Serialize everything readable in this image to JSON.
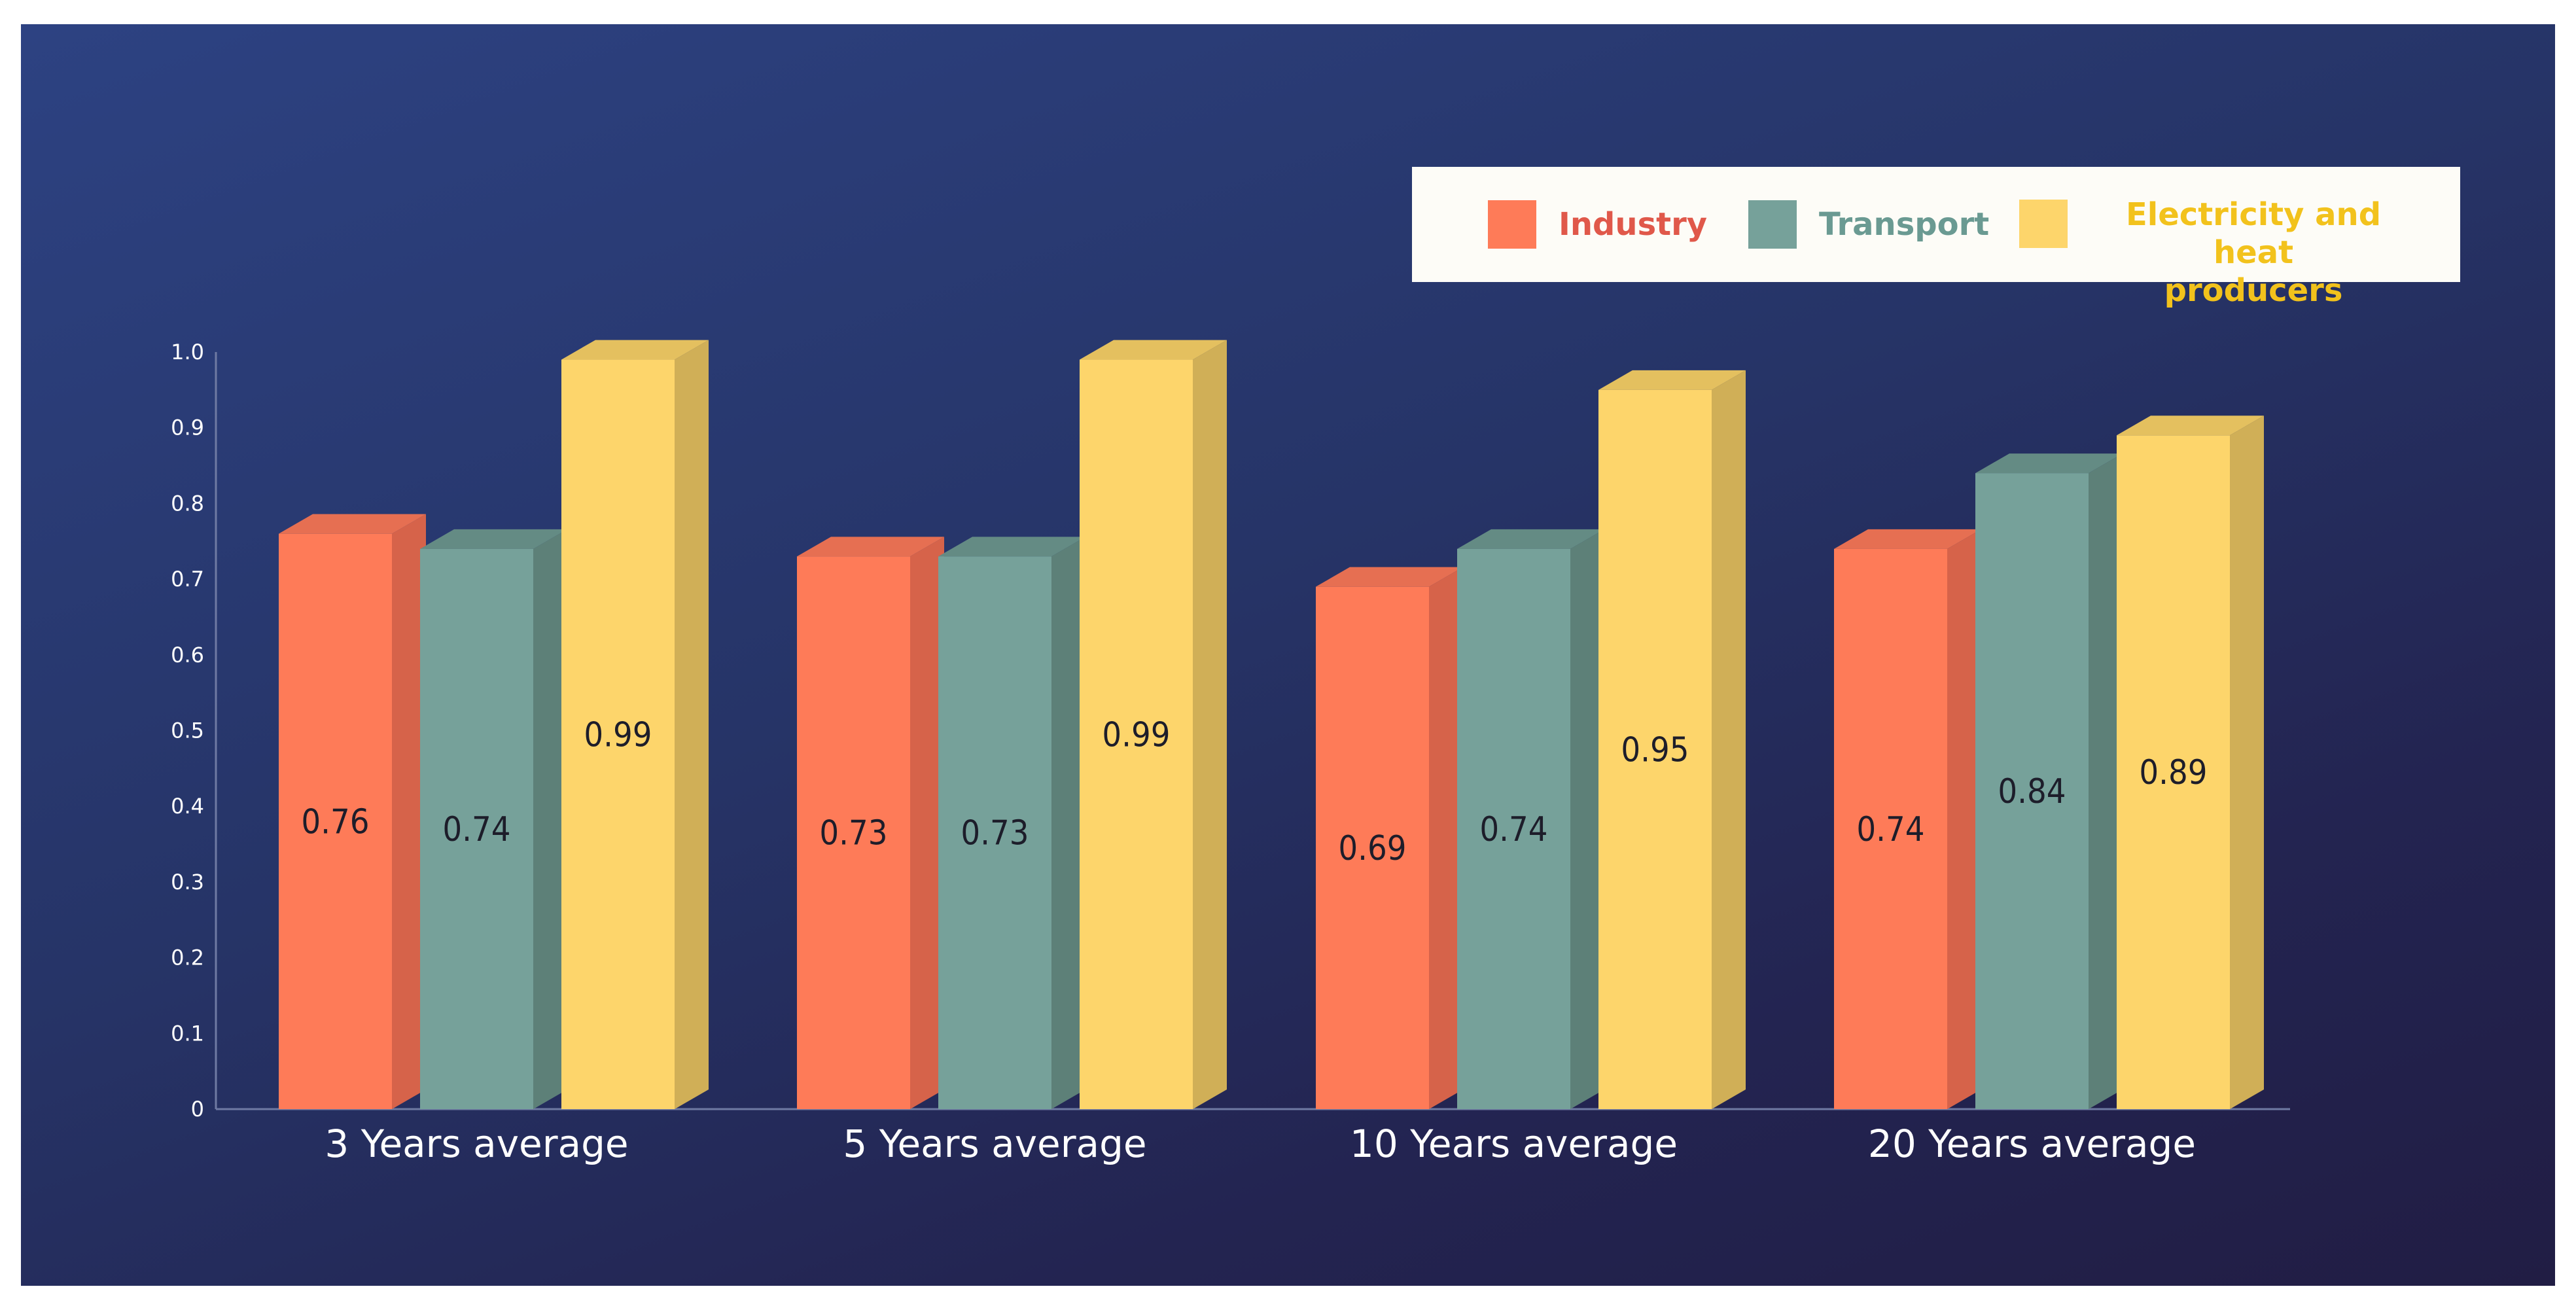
{
  "chart_data": {
    "type": "bar",
    "title": "",
    "xlabel": "",
    "ylabel": "",
    "ylim": [
      0,
      1.0
    ],
    "yticks": [
      "0",
      "0.1",
      "0.2",
      "0.3",
      "0.4",
      "0.5",
      "0.6",
      "0.7",
      "0.8",
      "0.9",
      "1.0"
    ],
    "categories": [
      "3 Years average",
      "5 Years average",
      "10 Years average",
      "20 Years average"
    ],
    "series": [
      {
        "name": "Industry",
        "values": [
          0.76,
          0.73,
          0.69,
          0.74
        ],
        "labels": [
          "0.76",
          "0.73",
          "0.69",
          "0.74"
        ],
        "color": "#fe7b58",
        "side_color": "#d6634a",
        "top_color": "#e66f52",
        "label_color": "#e0584a"
      },
      {
        "name": "Transport",
        "values": [
          0.74,
          0.73,
          0.74,
          0.84
        ],
        "labels": [
          "0.74",
          "0.73",
          "0.74",
          "0.84"
        ],
        "color": "#76a19a",
        "side_color": "#5d8078",
        "top_color": "#648b84",
        "label_color": "#6a9a92"
      },
      {
        "name": "Electricity and heat producers",
        "values": [
          0.99,
          0.99,
          0.95,
          0.89
        ],
        "labels": [
          "0.99",
          "0.99",
          "0.95",
          "0.89"
        ],
        "color": "#fdd56b",
        "side_color": "#d0af57",
        "top_color": "#e4c05f",
        "label_color": "#f2c21c"
      }
    ],
    "legend": {
      "position": "top-right",
      "labels": [
        "Industry",
        "Transport",
        "Electricity and heat producers"
      ],
      "lines": [
        [
          "Industry"
        ],
        [
          "Transport"
        ],
        [
          "Electricity and heat",
          "producers"
        ]
      ]
    },
    "grid": false
  }
}
